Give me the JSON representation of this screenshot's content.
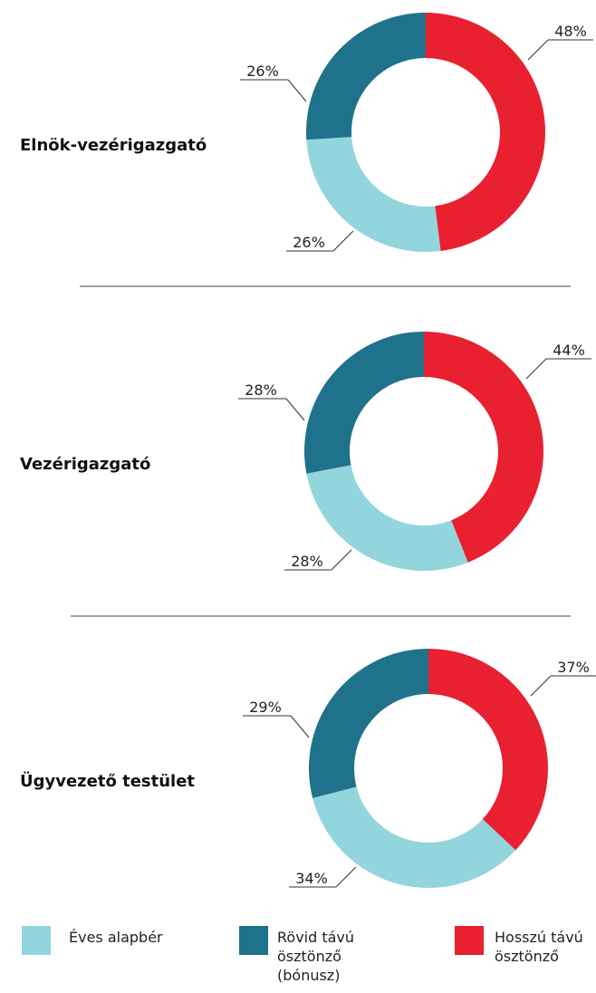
{
  "legend": {
    "labels": [
      "Éves alapbér",
      "Rövid távú ösztönző (bónusz)",
      "Hosszú távú ösztönző"
    ],
    "colors": [
      "#93d5dc",
      "#1f728c",
      "#e8202f"
    ]
  },
  "chart_data": [
    {
      "type": "donut",
      "title": "Elnök-vezérigazgató",
      "values": [
        26,
        26,
        48
      ],
      "value_labels": [
        "26%",
        "26%",
        "48%"
      ]
    },
    {
      "type": "donut",
      "title": "Vezérigazgató",
      "values": [
        28,
        28,
        44
      ],
      "value_labels": [
        "28%",
        "28%",
        "44%"
      ]
    },
    {
      "type": "donut",
      "title": "Ügyvezető testület",
      "values": [
        34,
        29,
        37
      ],
      "value_labels": [
        "34%",
        "29%",
        "37%"
      ]
    }
  ]
}
